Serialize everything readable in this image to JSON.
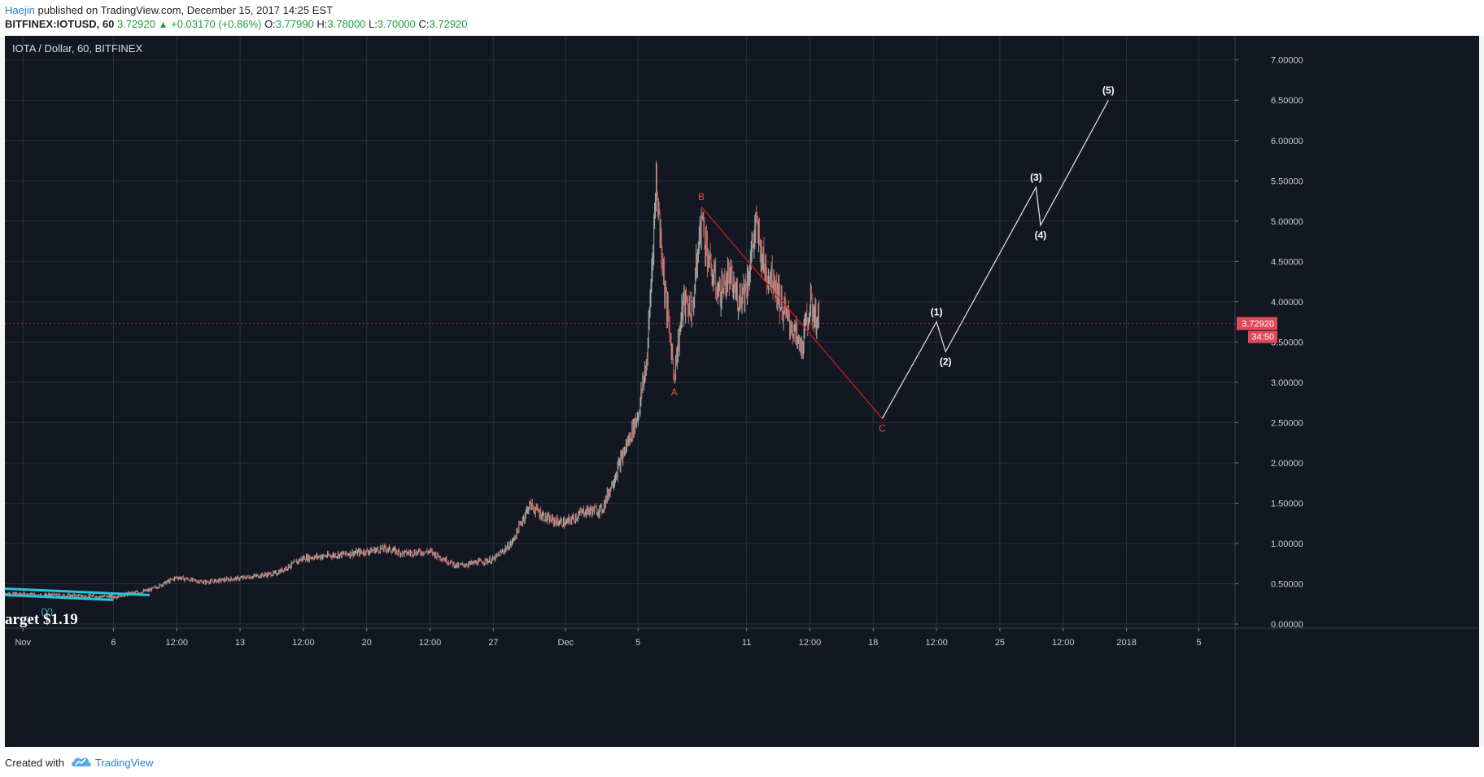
{
  "header": {
    "author": "Haejin",
    "published_text": "published on TradingView.com, December 15, 2017 14:25 EST",
    "symbol": "BITFINEX:IOTUSD, 60",
    "last": "3.72920",
    "change": "+0.03170 (+0.86%)",
    "ohlc": {
      "o_label": "O:",
      "o": "3.77990",
      "h_label": "H:",
      "h": "3.78000",
      "l_label": "L:",
      "l": "3.70000",
      "c_label": "C:",
      "c": "3.72920"
    }
  },
  "chart_title": "IOTA / Dollar, 60, BITFINEX",
  "annotation_text": "arget $1.19",
  "footer": {
    "created_with": "Created with",
    "brand": "TradingView"
  },
  "colors": {
    "background": "#131722",
    "grid": "#2a2e39",
    "candle_up": "#9fb3a8",
    "candle_down": "#d06060",
    "abc_line": "#c81e1e",
    "projection_line": "#e8e8e8",
    "trendline": "#22c8d8",
    "price_badge": "#e04a5a"
  },
  "chart_data": {
    "type": "candlestick",
    "title": "IOTA / Dollar, 60, BITFINEX",
    "ylim": [
      -0.05,
      7.3
    ],
    "y_ticks": [
      "0.00000",
      "0.50000",
      "1.00000",
      "1.50000",
      "2.00000",
      "2.50000",
      "3.00000",
      "3.50000",
      "4.00000",
      "4.50000",
      "5.00000",
      "5.50000",
      "6.00000",
      "6.50000",
      "7.00000"
    ],
    "x_range_days": [
      "2017-10-31",
      "2018-01-07"
    ],
    "x_ticks": [
      {
        "label": "Nov",
        "date": "2017-11-01"
      },
      {
        "label": "6",
        "date": "2017-11-06"
      },
      {
        "label": "12:00",
        "date": "2017-11-09T12:00"
      },
      {
        "label": "13",
        "date": "2017-11-13"
      },
      {
        "label": "12:00",
        "date": "2017-11-16T12:00"
      },
      {
        "label": "20",
        "date": "2017-11-20"
      },
      {
        "label": "12:00",
        "date": "2017-11-23T12:00"
      },
      {
        "label": "27",
        "date": "2017-11-27"
      },
      {
        "label": "Dec",
        "date": "2017-12-01"
      },
      {
        "label": "5",
        "date": "2017-12-05"
      },
      {
        "label": "11",
        "date": "2017-12-11"
      },
      {
        "label": "12:00",
        "date": "2017-12-14T12:00"
      },
      {
        "label": "18",
        "date": "2017-12-18"
      },
      {
        "label": "12:00",
        "date": "2017-12-21T12:00"
      },
      {
        "label": "25",
        "date": "2017-12-25"
      },
      {
        "label": "12:00",
        "date": "2017-12-28T12:00"
      },
      {
        "label": "2018",
        "date": "2018-01-01"
      },
      {
        "label": "5",
        "date": "2018-01-05"
      }
    ],
    "price_path": [
      [
        "2017-10-31",
        0.38
      ],
      [
        "2017-11-02",
        0.36
      ],
      [
        "2017-11-04",
        0.35
      ],
      [
        "2017-11-06",
        0.34
      ],
      [
        "2017-11-08",
        0.42
      ],
      [
        "2017-11-09T12:00",
        0.58
      ],
      [
        "2017-11-11",
        0.52
      ],
      [
        "2017-11-13",
        0.57
      ],
      [
        "2017-11-15",
        0.63
      ],
      [
        "2017-11-16T12:00",
        0.82
      ],
      [
        "2017-11-18",
        0.85
      ],
      [
        "2017-11-20",
        0.9
      ],
      [
        "2017-11-21",
        0.94
      ],
      [
        "2017-11-22",
        0.88
      ],
      [
        "2017-11-23T12:00",
        0.9
      ],
      [
        "2017-11-25",
        0.72
      ],
      [
        "2017-11-27",
        0.8
      ],
      [
        "2017-11-28",
        1.0
      ],
      [
        "2017-11-29",
        1.48
      ],
      [
        "2017-11-30",
        1.3
      ],
      [
        "2017-12-01",
        1.25
      ],
      [
        "2017-12-02",
        1.4
      ],
      [
        "2017-12-03",
        1.42
      ],
      [
        "2017-12-04",
        2.0
      ],
      [
        "2017-12-05",
        2.6
      ],
      [
        "2017-12-05T12:00",
        3.3
      ],
      [
        "2017-12-06",
        5.5
      ],
      [
        "2017-12-06T12:00",
        4.1
      ],
      [
        "2017-12-07",
        3.1
      ],
      [
        "2017-12-07T12:00",
        4.0
      ],
      [
        "2017-12-08",
        3.9
      ],
      [
        "2017-12-08T12:00",
        5.05
      ],
      [
        "2017-12-09",
        4.4
      ],
      [
        "2017-12-09T12:00",
        4.1
      ],
      [
        "2017-12-10",
        4.3
      ],
      [
        "2017-12-10T12:00",
        4.05
      ],
      [
        "2017-12-11",
        4.2
      ],
      [
        "2017-12-11T12:00",
        4.95
      ],
      [
        "2017-12-12",
        4.4
      ],
      [
        "2017-12-12T12:00",
        4.3
      ],
      [
        "2017-12-13",
        3.9
      ],
      [
        "2017-12-13T12:00",
        3.7
      ],
      [
        "2017-12-14",
        3.4
      ],
      [
        "2017-12-14T12:00",
        3.95
      ],
      [
        "2017-12-15",
        3.73
      ]
    ],
    "current_price": "3.72920",
    "countdown": "34:50",
    "wave_labels": [
      {
        "label": "A",
        "date": "2017-12-07",
        "price": 3.0,
        "color": "red"
      },
      {
        "label": "B",
        "date": "2017-12-08T12:00",
        "price": 5.18,
        "color": "red"
      },
      {
        "label": "C",
        "date": "2017-12-18T12:00",
        "price": 2.55,
        "color": "red"
      },
      {
        "label": "(1)",
        "date": "2017-12-21T12:00",
        "price": 3.75,
        "color": "white"
      },
      {
        "label": "(2)",
        "date": "2017-12-22",
        "price": 3.38,
        "color": "white"
      },
      {
        "label": "(3)",
        "date": "2017-12-27",
        "price": 5.42,
        "color": "white"
      },
      {
        "label": "(4)",
        "date": "2017-12-27T06:00",
        "price": 4.95,
        "color": "white"
      },
      {
        "label": "(5)",
        "date": "2017-12-31",
        "price": 6.5,
        "color": "white"
      }
    ],
    "abc_line": [
      [
        "2017-12-08T12:00",
        5.18
      ],
      [
        "2017-12-18T12:00",
        2.55
      ]
    ],
    "projection_path": [
      [
        "2017-12-18T12:00",
        2.55
      ],
      [
        "2017-12-21T12:00",
        3.75
      ],
      [
        "2017-12-22",
        3.38
      ],
      [
        "2017-12-27",
        5.42
      ],
      [
        "2017-12-27T06:00",
        4.95
      ],
      [
        "2017-12-31",
        6.5
      ]
    ],
    "trendlines": [
      [
        [
          "2017-10-31",
          0.44
        ],
        [
          "2017-11-08",
          0.36
        ]
      ],
      [
        [
          "2017-10-31",
          0.36
        ],
        [
          "2017-11-06",
          0.3
        ]
      ]
    ],
    "small_label": "(Y)"
  }
}
